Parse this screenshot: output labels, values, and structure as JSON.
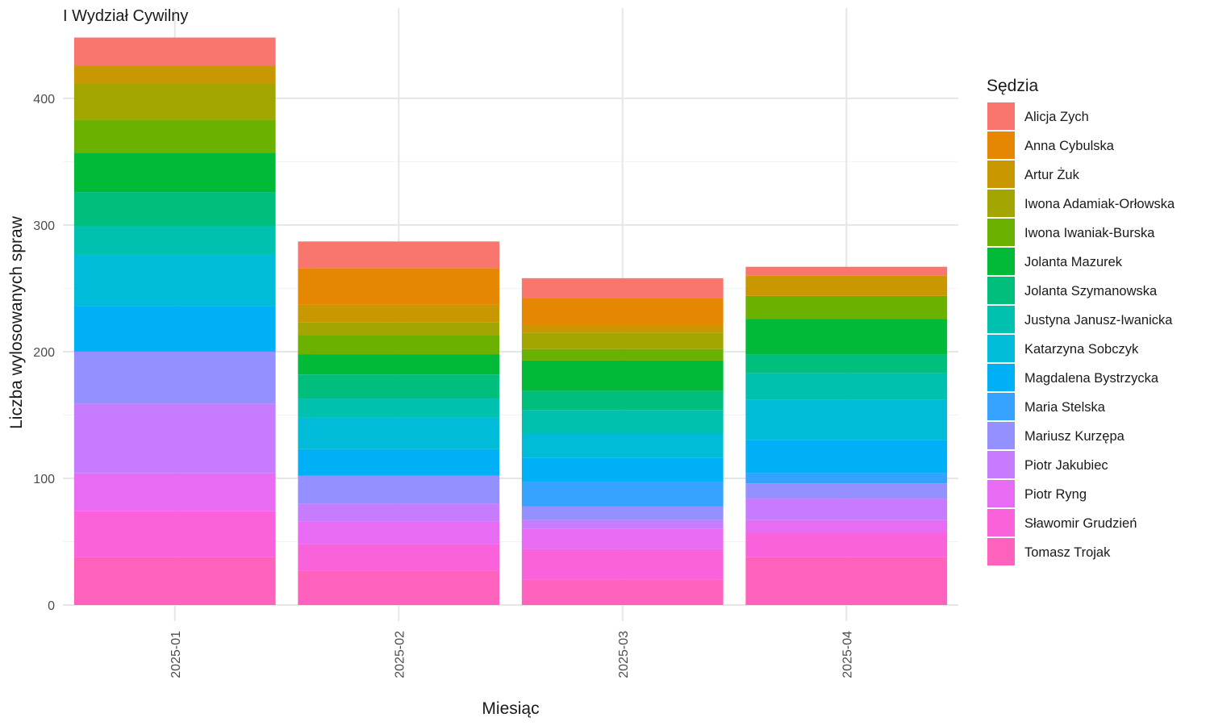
{
  "chart_data": {
    "type": "bar",
    "stacked": true,
    "title": "I Wydział Cywilny",
    "xlabel": "Miesiąc",
    "ylabel": "Liczba wylosowanych spraw",
    "ylim": [
      0,
      450
    ],
    "yticks": [
      0,
      100,
      200,
      300,
      400
    ],
    "grid": true,
    "legend": {
      "title": "Sędzia",
      "position": "right"
    },
    "categories": [
      "2025-01",
      "2025-02",
      "2025-03",
      "2025-04"
    ],
    "series": [
      {
        "name": "Alicja Zych",
        "color": "#F8766D",
        "values": [
          22,
          21,
          16,
          7
        ]
      },
      {
        "name": "Anna Cybulska",
        "color": "#E58700",
        "values": [
          0,
          29,
          21,
          0
        ]
      },
      {
        "name": "Artur Żuk",
        "color": "#C99800",
        "values": [
          14,
          14,
          6,
          16
        ]
      },
      {
        "name": "Iwona Adamiak-Orłowska",
        "color": "#A3A500",
        "values": [
          29,
          10,
          13,
          0
        ]
      },
      {
        "name": "Iwona Iwaniak-Burska",
        "color": "#6BB100",
        "values": [
          26,
          15,
          9,
          18
        ]
      },
      {
        "name": "Jolanta Mazurek",
        "color": "#00BA38",
        "values": [
          31,
          16,
          24,
          28
        ]
      },
      {
        "name": "Jolanta Szymanowska",
        "color": "#00BF7D",
        "values": [
          27,
          19,
          15,
          15
        ]
      },
      {
        "name": "Justyna Janusz-Iwanicka",
        "color": "#00C0AF",
        "values": [
          22,
          15,
          19,
          21
        ]
      },
      {
        "name": "Katarzyna Sobczyk",
        "color": "#00BCD8",
        "values": [
          41,
          25,
          19,
          32
        ]
      },
      {
        "name": "Magdalena Bystrzycka",
        "color": "#00B0F6",
        "values": [
          36,
          21,
          19,
          26
        ]
      },
      {
        "name": "Maria Stelska",
        "color": "#35A2FF",
        "values": [
          0,
          0,
          19,
          8
        ]
      },
      {
        "name": "Mariusz Kurzępa",
        "color": "#9590FF",
        "values": [
          41,
          22,
          11,
          12
        ]
      },
      {
        "name": "Piotr Jakubiec",
        "color": "#C77CFF",
        "values": [
          55,
          14,
          7,
          17
        ]
      },
      {
        "name": "Piotr Ryng",
        "color": "#E76BF3",
        "values": [
          30,
          18,
          16,
          10
        ]
      },
      {
        "name": "Sławomir Grudzień",
        "color": "#FA62DB",
        "values": [
          36,
          21,
          24,
          19
        ]
      },
      {
        "name": "Tomasz Trojak",
        "color": "#FF62BC",
        "values": [
          38,
          27,
          20,
          38
        ]
      }
    ]
  }
}
